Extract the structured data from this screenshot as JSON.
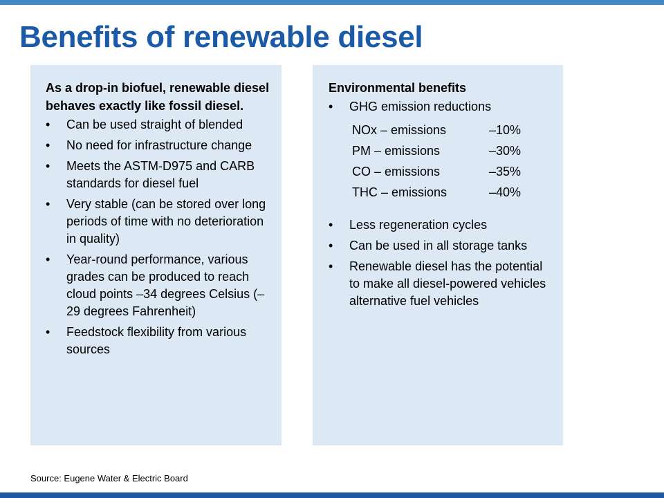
{
  "title": "Benefits of renewable diesel",
  "left_panel": {
    "heading": "As a drop-in biofuel, renewable diesel behaves exactly like fossil diesel.",
    "bullets": [
      "Can be used straight of blended",
      "No need for infrastructure change",
      "Meets the ASTM-D975 and CARB standards for diesel fuel",
      "Very stable (can be stored over long periods of time with no deterioration in quality)",
      "Year-round performance, various grades can be produced to reach cloud points –34 degrees Celsius (–29 degrees Fahrenheit)",
      "Feedstock flexibility from various sources"
    ]
  },
  "right_panel": {
    "heading": "Environmental benefits",
    "first_bullet": "GHG emission reductions",
    "emissions": [
      {
        "label": "NOx – emissions",
        "value": "–10%"
      },
      {
        "label": "PM – emissions",
        "value": "–30%"
      },
      {
        "label": "CO – emissions",
        "value": "–35%"
      },
      {
        "label": "THC – emissions",
        "value": "–40%"
      }
    ],
    "bullets": [
      "Less regeneration cycles",
      "Can be used in all storage tanks",
      "Renewable diesel has the potential to make all diesel-powered vehicles alternative fuel vehicles"
    ]
  },
  "bullet_char": "•",
  "source": "Source: Eugene Water & Electric Board",
  "colors": {
    "title": "#1b5aa6",
    "panel_bg": "#dce8f4",
    "top_bar": "#3f87c9",
    "bottom_bar": "#1f5a9e"
  }
}
